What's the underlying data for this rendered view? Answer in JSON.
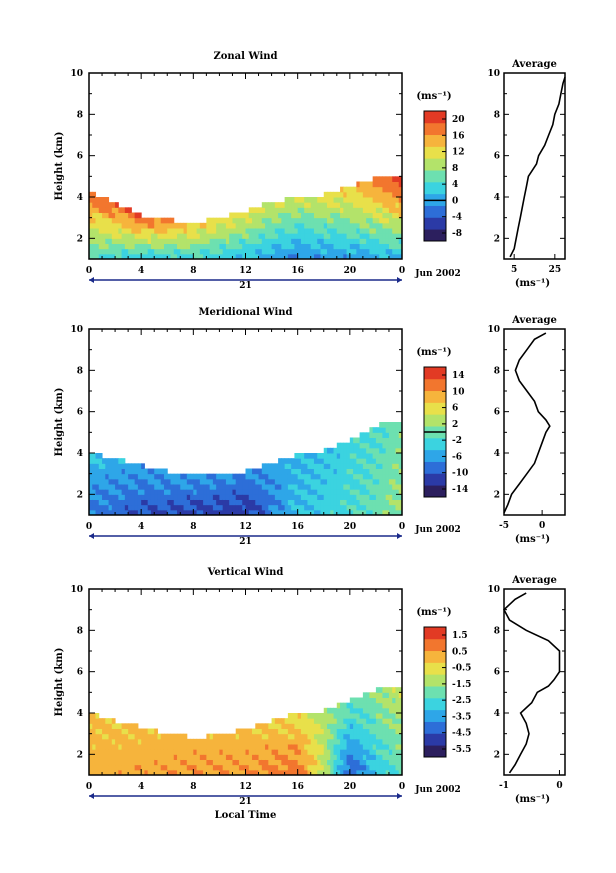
{
  "figure": {
    "xlabel": "Local Time",
    "date_label": "Jun 2002",
    "day_label": "21"
  },
  "colormap": [
    "#2c1f5e",
    "#2b3aa6",
    "#2d6ed8",
    "#2ea6e8",
    "#3bd3e0",
    "#6de0b0",
    "#b3e36a",
    "#e8e04a",
    "#f6b43c",
    "#f2762e",
    "#e23a24"
  ],
  "chart_data": [
    {
      "type": "heatmap",
      "title": "Zonal Wind",
      "ylabel": "Height (km)",
      "xlim": [
        0,
        24
      ],
      "x_ticks": [
        "0",
        "4",
        "8",
        "12",
        "16",
        "20",
        "0"
      ],
      "ylim": [
        1,
        10
      ],
      "y_ticks": [
        "2",
        "4",
        "6",
        "8",
        "10"
      ],
      "colorbar": {
        "unit": "(ms⁻¹)",
        "ticks": [
          "20",
          "16",
          "12",
          "8",
          "4",
          "0",
          "-4",
          "-8"
        ],
        "range": [
          -10,
          22
        ],
        "contour_level": 0
      },
      "field": {
        "base": 1.0,
        "top": [
          [
            0,
            4.1
          ],
          [
            2,
            3.6
          ],
          [
            4,
            3.0
          ],
          [
            6,
            2.8
          ],
          [
            8,
            2.6
          ],
          [
            10,
            2.9
          ],
          [
            12,
            3.2
          ],
          [
            14,
            3.7
          ],
          [
            16,
            3.8
          ],
          [
            18,
            4.0
          ],
          [
            20,
            4.4
          ],
          [
            22,
            4.8
          ],
          [
            24,
            4.9
          ]
        ],
        "lower_value": [
          [
            0,
            5
          ],
          [
            4,
            3
          ],
          [
            8,
            4
          ],
          [
            12,
            2
          ],
          [
            16,
            -1
          ],
          [
            20,
            0
          ],
          [
            24,
            2
          ]
        ],
        "upper_value": [
          [
            0,
            18
          ],
          [
            4,
            20
          ],
          [
            8,
            14
          ],
          [
            12,
            12
          ],
          [
            16,
            10
          ],
          [
            20,
            14
          ],
          [
            24,
            22
          ]
        ]
      },
      "average_profile": {
        "title": "Average",
        "xlabel": "(ms⁻¹)",
        "xlim": [
          0,
          30
        ],
        "x_ticks": [
          "5",
          "25"
        ],
        "height": [
          1.1,
          1.5,
          2.0,
          2.5,
          3.0,
          3.5,
          4.0,
          4.5,
          5.0,
          5.3,
          5.6,
          6.0,
          6.5,
          7.0,
          7.5,
          8.0,
          8.5,
          9.0,
          9.5,
          9.8
        ],
        "value": [
          3,
          5,
          6,
          7,
          8,
          9,
          10,
          11,
          12,
          14,
          16,
          17,
          20,
          22,
          24,
          25,
          27,
          28,
          29,
          30
        ]
      }
    },
    {
      "type": "heatmap",
      "title": "Meridional Wind",
      "ylabel": "Height (km)",
      "xlim": [
        0,
        24
      ],
      "x_ticks": [
        "0",
        "4",
        "8",
        "12",
        "16",
        "20",
        "0"
      ],
      "ylim": [
        1,
        10
      ],
      "y_ticks": [
        "2",
        "4",
        "6",
        "8",
        "10"
      ],
      "colorbar": {
        "unit": "(ms⁻¹)",
        "ticks": [
          "14",
          "10",
          "6",
          "2",
          "-2",
          "-6",
          "-10",
          "-14"
        ],
        "range": [
          -16,
          16
        ],
        "contour_level": 0
      },
      "field": {
        "base": 1.0,
        "top": [
          [
            0,
            3.9
          ],
          [
            2,
            3.6
          ],
          [
            4,
            3.3
          ],
          [
            6,
            3.0
          ],
          [
            8,
            2.9
          ],
          [
            10,
            2.8
          ],
          [
            12,
            3.0
          ],
          [
            14,
            3.4
          ],
          [
            16,
            3.8
          ],
          [
            18,
            4.0
          ],
          [
            20,
            4.5
          ],
          [
            22,
            5.2
          ],
          [
            24,
            5.5
          ]
        ],
        "lower_value": [
          [
            0,
            -8
          ],
          [
            4,
            -10
          ],
          [
            8,
            -11
          ],
          [
            12,
            -12
          ],
          [
            16,
            -4
          ],
          [
            20,
            -2
          ],
          [
            24,
            2
          ]
        ],
        "upper_value": [
          [
            0,
            -4
          ],
          [
            4,
            -6
          ],
          [
            8,
            -6
          ],
          [
            12,
            -7
          ],
          [
            16,
            -5
          ],
          [
            20,
            -3
          ],
          [
            24,
            0
          ]
        ]
      },
      "average_profile": {
        "title": "Average",
        "xlabel": "(ms⁻¹)",
        "xlim": [
          -5,
          3
        ],
        "x_ticks": [
          "-5",
          "0"
        ],
        "height": [
          1.1,
          1.5,
          2.0,
          2.5,
          3.0,
          3.5,
          4.0,
          4.5,
          5.0,
          5.3,
          5.6,
          6.0,
          6.5,
          7.0,
          7.5,
          8.0,
          8.5,
          9.0,
          9.5,
          9.8
        ],
        "value": [
          -5,
          -4.5,
          -4,
          -3,
          -2,
          -1,
          -0.5,
          0,
          0.5,
          1,
          0.5,
          -0.5,
          -1,
          -2,
          -3,
          -3.5,
          -3,
          -2,
          -1,
          0.5
        ]
      }
    },
    {
      "type": "heatmap",
      "title": "Vertical Wind",
      "ylabel": "Height (km)",
      "xlim": [
        0,
        24
      ],
      "x_ticks": [
        "0",
        "4",
        "8",
        "12",
        "16",
        "20",
        "0"
      ],
      "ylim": [
        1,
        10
      ],
      "y_ticks": [
        "2",
        "4",
        "6",
        "8",
        "10"
      ],
      "colorbar": {
        "unit": "(ms⁻¹)",
        "ticks": [
          "1.5",
          "0.5",
          "-0.5",
          "-1.5",
          "-2.5",
          "-3.5",
          "-4.5",
          "-5.5"
        ],
        "range": [
          -6,
          2
        ]
      },
      "field": {
        "base": 1.0,
        "top": [
          [
            0,
            3.9
          ],
          [
            2,
            3.5
          ],
          [
            4,
            3.2
          ],
          [
            6,
            2.9
          ],
          [
            8,
            2.7
          ],
          [
            10,
            2.8
          ],
          [
            12,
            3.1
          ],
          [
            14,
            3.5
          ],
          [
            16,
            3.9
          ],
          [
            18,
            4.0
          ],
          [
            20,
            4.5
          ],
          [
            22,
            5.0
          ],
          [
            24,
            5.2
          ]
        ],
        "lower_value": [
          [
            0,
            0.2
          ],
          [
            4,
            0.3
          ],
          [
            8,
            0.4
          ],
          [
            12,
            0.5
          ],
          [
            16,
            1.0
          ],
          [
            18,
            -1
          ],
          [
            20,
            -4.5
          ],
          [
            22,
            -3
          ],
          [
            24,
            -2
          ]
        ],
        "upper_value": [
          [
            0,
            0
          ],
          [
            4,
            0
          ],
          [
            8,
            0.2
          ],
          [
            12,
            0
          ],
          [
            16,
            -0.5
          ],
          [
            20,
            -2
          ],
          [
            24,
            -1
          ]
        ]
      },
      "average_profile": {
        "title": "Average",
        "xlabel": "(ms⁻¹)",
        "xlim": [
          -1,
          0.1
        ],
        "x_ticks": [
          "-1",
          "0"
        ],
        "height": [
          1.1,
          1.5,
          2.0,
          2.5,
          3.0,
          3.5,
          4.0,
          4.5,
          5.0,
          5.3,
          5.6,
          6.0,
          6.5,
          7.0,
          7.5,
          8.0,
          8.5,
          9.0,
          9.5,
          9.8
        ],
        "value": [
          -0.9,
          -0.8,
          -0.7,
          -0.6,
          -0.55,
          -0.6,
          -0.7,
          -0.5,
          -0.4,
          -0.2,
          -0.1,
          0,
          0,
          0,
          -0.2,
          -0.6,
          -0.9,
          -1,
          -0.8,
          -0.6
        ]
      }
    }
  ]
}
